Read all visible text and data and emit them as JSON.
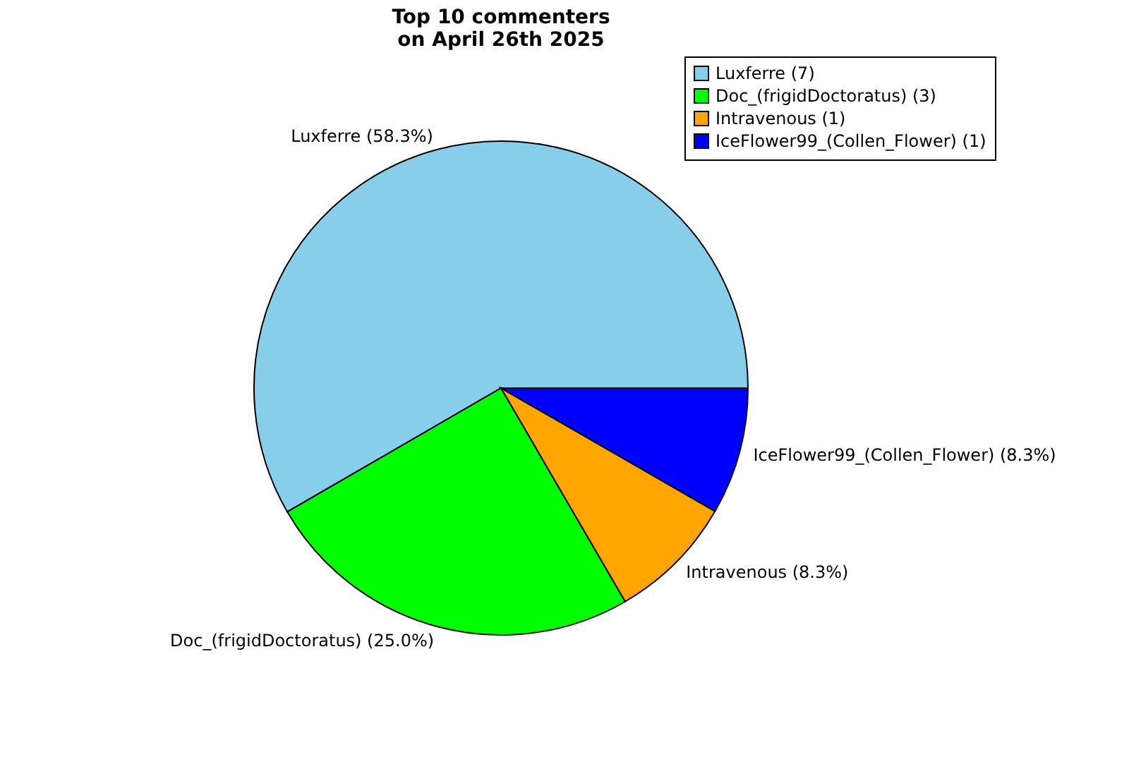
{
  "chart_data": {
    "type": "pie",
    "title": "Top 10 commenters\non April 26th 2025",
    "categories": [
      "Luxferre (7)",
      "Doc_(frigidDoctoratus) (3)",
      "Intravenous (1)",
      "IceFlower99_(Collen_Flower) (1)"
    ],
    "values": [
      58.3,
      25.0,
      8.3,
      8.3
    ],
    "colors": [
      "#87ceeb",
      "#00ff00",
      "#ffa500",
      "#0000ff"
    ],
    "value_labels": [
      "Luxferre (58.3%)",
      "Doc_(frigidDoctoratus) (25.0%)",
      "Intravenous (8.3%)",
      "IceFlower99_(Collen_Flower) (8.3%)"
    ],
    "legend": "top right"
  }
}
